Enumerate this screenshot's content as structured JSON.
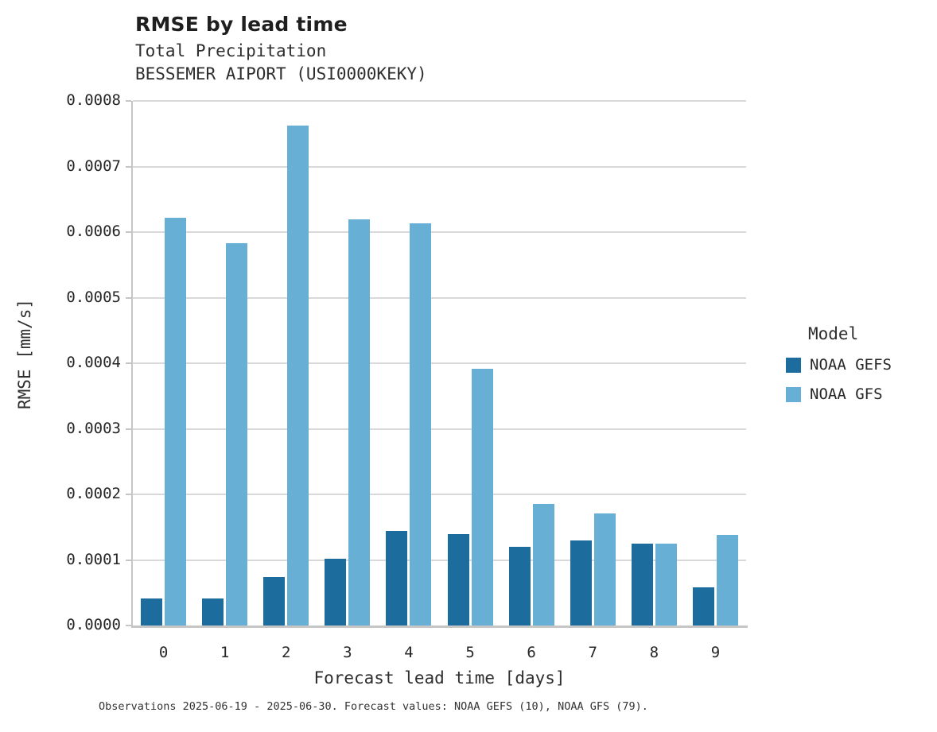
{
  "header": {
    "title": "RMSE by lead time",
    "subtitle_variable": "Total Precipitation",
    "subtitle_station": "BESSEMER AIPORT (USI0000KEKY)"
  },
  "legend": {
    "title": "Model",
    "items": [
      "NOAA GEFS",
      "NOAA GFS"
    ]
  },
  "footer": {
    "caption": "Observations 2025-06-19 - 2025-06-30. Forecast values: NOAA GEFS (10), NOAA GFS (79)."
  },
  "colors": {
    "gefs_dark_blue": "#1C6D9D",
    "gfs_light_blue": "#68AFD6",
    "gridline": "#d9d9d9",
    "spine": "#c6c6c6"
  },
  "chart_data": {
    "type": "bar",
    "title": "RMSE by lead time",
    "subtitle": [
      "Total Precipitation",
      "BESSEMER AIPORT (USI0000KEKY)"
    ],
    "xlabel": "Forecast lead time [days]",
    "ylabel": "RMSE [mm/s]",
    "categories": [
      "0",
      "1",
      "2",
      "3",
      "4",
      "5",
      "6",
      "7",
      "8",
      "9"
    ],
    "series": [
      {
        "name": "NOAA GEFS",
        "color": "#1C6D9D",
        "values": [
          4.1e-05,
          4.1e-05,
          7.4e-05,
          0.000102,
          0.000144,
          0.000139,
          0.00012,
          0.00013,
          0.000125,
          5.8e-05
        ]
      },
      {
        "name": "NOAA GFS",
        "color": "#68AFD6",
        "values": [
          0.000622,
          0.000583,
          0.000762,
          0.000619,
          0.000613,
          0.000391,
          0.000186,
          0.000171,
          0.000125,
          0.000138
        ]
      }
    ],
    "ylim": [
      0,
      0.0008
    ],
    "ytick_step": 0.0001,
    "ytick_decimals": 4,
    "grid": true,
    "legend_position": "right",
    "legend_title": "Model"
  }
}
